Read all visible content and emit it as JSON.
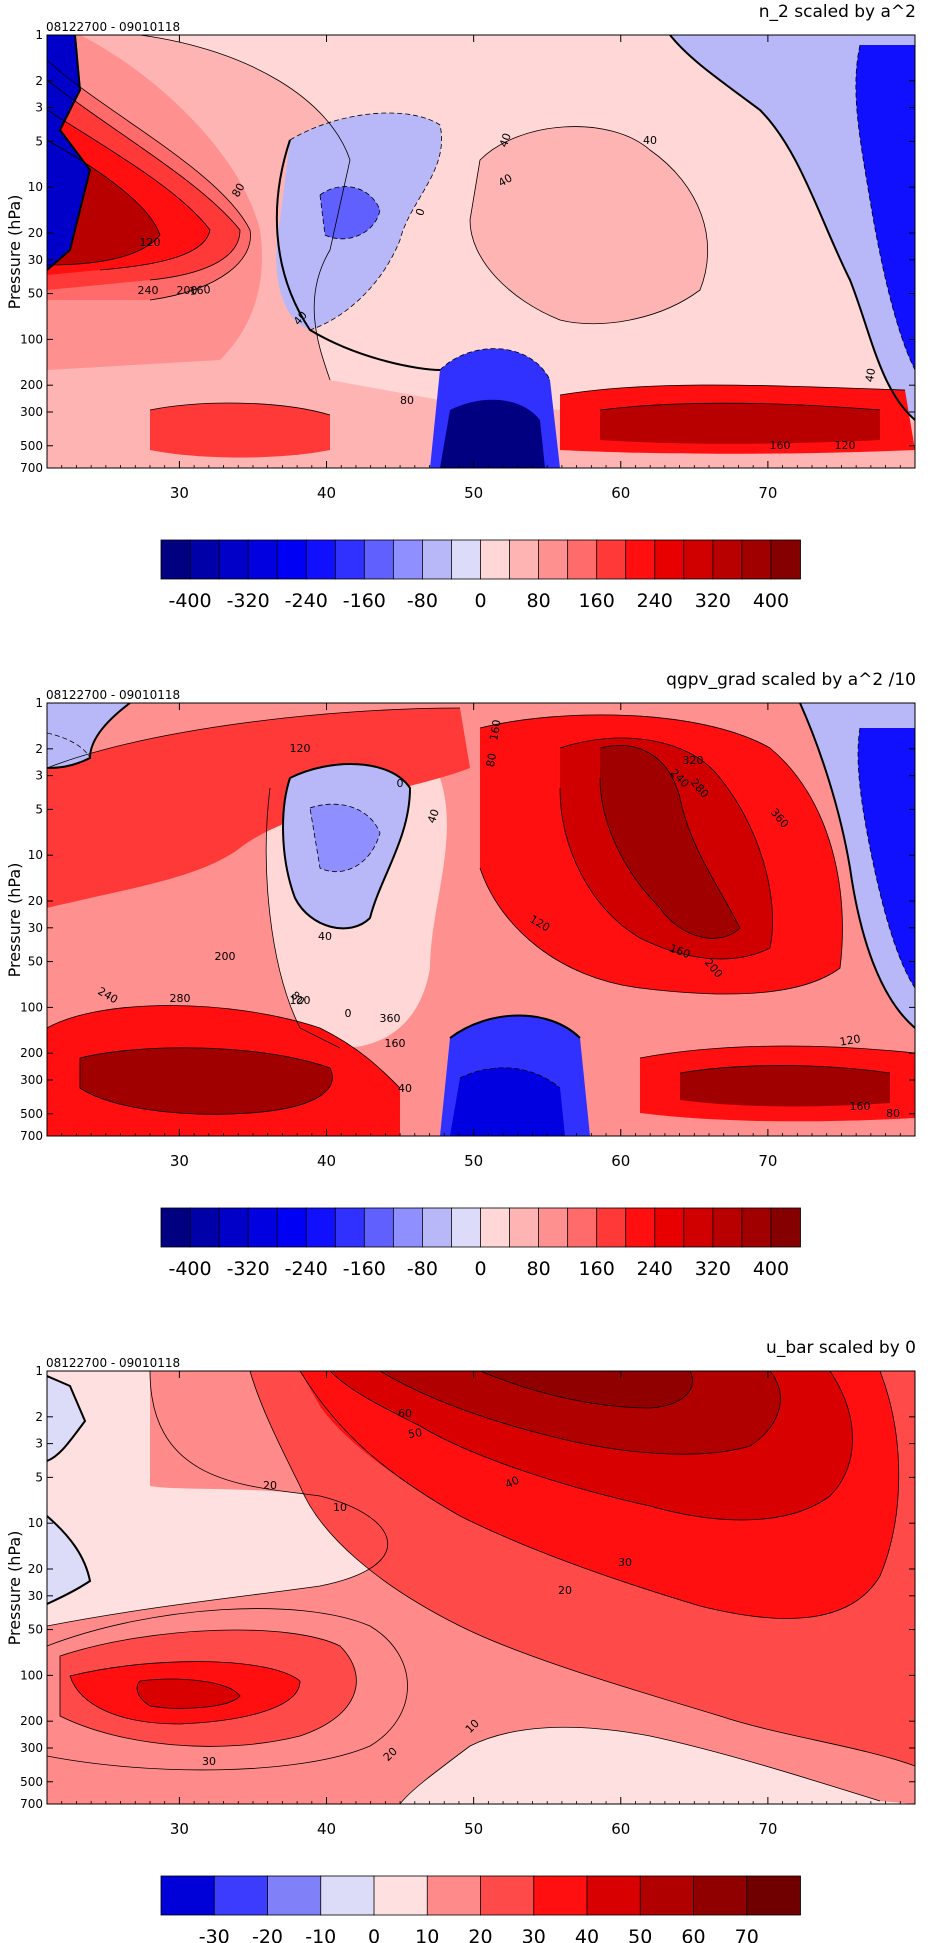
{
  "chart_data": [
    {
      "type": "contour",
      "title": "n_2 scaled by a^2",
      "date_range": "08122700 - 09010118",
      "xlabel": "",
      "ylabel": "Pressure (hPa)",
      "log_y": true,
      "y_reversed": true,
      "xlim": [
        21,
        80
      ],
      "ylim": [
        1,
        700
      ],
      "x_ticks": [
        "30",
        "40",
        "50",
        "60",
        "70"
      ],
      "x_tick_values": [
        30,
        40,
        50,
        60,
        70
      ],
      "y_ticks": [
        "1",
        "2",
        "3",
        "5",
        "10",
        "20",
        "30",
        "50",
        "100",
        "200",
        "300",
        "500",
        "700"
      ],
      "y_tick_values": [
        1,
        2,
        3,
        5,
        10,
        20,
        30,
        50,
        100,
        200,
        300,
        500,
        700
      ],
      "colorbar": {
        "labels": [
          "-400",
          "-320",
          "-240",
          "-160",
          "-80",
          "0",
          "80",
          "160",
          "240",
          "320",
          "400"
        ],
        "label_values": [
          -400,
          -320,
          -240,
          -160,
          -80,
          0,
          80,
          160,
          240,
          320,
          400
        ],
        "min": -440,
        "max": 440,
        "step": 40,
        "colors": [
          "#000080",
          "#0000a8",
          "#0000c8",
          "#0000e0",
          "#0000f5",
          "#1010ff",
          "#3030ff",
          "#6060ff",
          "#8f8fff",
          "#b8b8f8",
          "#dcdcfa",
          "#ffd7d7",
          "#ffb4b4",
          "#ff9090",
          "#ff6a6a",
          "#ff3838",
          "#ff0f0f",
          "#e80000",
          "#d00000",
          "#b80000",
          "#a00000",
          "#850000"
        ]
      },
      "contour_labels": [
        "80",
        "120",
        "160",
        "200",
        "240",
        "0",
        "40",
        "80",
        "40",
        "40",
        "40",
        "160",
        "120",
        "40"
      ]
    },
    {
      "type": "contour",
      "title": "qgpv_grad scaled by a^2 /10",
      "date_range": "08122700 - 09010118",
      "xlabel": "",
      "ylabel": "Pressure (hPa)",
      "log_y": true,
      "y_reversed": true,
      "xlim": [
        21,
        80
      ],
      "ylim": [
        1,
        700
      ],
      "x_ticks": [
        "30",
        "40",
        "50",
        "60",
        "70"
      ],
      "x_tick_values": [
        30,
        40,
        50,
        60,
        70
      ],
      "y_ticks": [
        "1",
        "2",
        "3",
        "5",
        "10",
        "20",
        "30",
        "50",
        "100",
        "200",
        "300",
        "500",
        "700"
      ],
      "y_tick_values": [
        1,
        2,
        3,
        5,
        10,
        20,
        30,
        50,
        100,
        200,
        300,
        500,
        700
      ],
      "colorbar": {
        "labels": [
          "-400",
          "-320",
          "-240",
          "-160",
          "-80",
          "0",
          "80",
          "160",
          "240",
          "320",
          "400"
        ],
        "label_values": [
          -400,
          -320,
          -240,
          -160,
          -80,
          0,
          80,
          160,
          240,
          320,
          400
        ],
        "min": -440,
        "max": 440,
        "step": 40,
        "colors": [
          "#000080",
          "#0000a8",
          "#0000c8",
          "#0000e0",
          "#0000f5",
          "#1010ff",
          "#3030ff",
          "#6060ff",
          "#8f8fff",
          "#b8b8f8",
          "#dcdcfa",
          "#ffd7d7",
          "#ffb4b4",
          "#ff9090",
          "#ff6a6a",
          "#ff3838",
          "#ff0f0f",
          "#e80000",
          "#d00000",
          "#b80000",
          "#a00000",
          "#850000"
        ]
      },
      "contour_labels": [
        "120",
        "0",
        "40",
        "80",
        "160",
        "320",
        "240",
        "280",
        "360",
        "120",
        "160",
        "200",
        "40",
        "80",
        "0",
        "200",
        "240",
        "280",
        "120",
        "360",
        "160",
        "120",
        "160",
        "80",
        "40"
      ]
    },
    {
      "type": "contour",
      "title": "u_bar scaled by 0",
      "date_range": "08122700 - 09010118",
      "xlabel": "",
      "ylabel": "Pressure (hPa)",
      "log_y": true,
      "y_reversed": true,
      "xlim": [
        21,
        80
      ],
      "ylim": [
        1,
        700
      ],
      "x_ticks": [
        "30",
        "40",
        "50",
        "60",
        "70"
      ],
      "x_tick_values": [
        30,
        40,
        50,
        60,
        70
      ],
      "y_ticks": [
        "1",
        "2",
        "3",
        "5",
        "10",
        "20",
        "30",
        "50",
        "100",
        "200",
        "300",
        "500",
        "700"
      ],
      "y_tick_values": [
        1,
        2,
        3,
        5,
        10,
        20,
        30,
        50,
        100,
        200,
        300,
        500,
        700
      ],
      "colorbar": {
        "labels": [
          "-30",
          "-20",
          "-10",
          "0",
          "10",
          "20",
          "30",
          "40",
          "50",
          "60",
          "70"
        ],
        "label_values": [
          -30,
          -20,
          -10,
          0,
          10,
          20,
          30,
          40,
          50,
          60,
          70
        ],
        "min": -40,
        "max": 80,
        "step": 10,
        "colors": [
          "#0000d8",
          "#3c3cff",
          "#8080f8",
          "#dcdcf8",
          "#ffe0e0",
          "#ff8a8a",
          "#ff4a4a",
          "#ff0f0f",
          "#d80000",
          "#b00000",
          "#900000",
          "#700000"
        ]
      },
      "contour_labels": [
        "60",
        "50",
        "20",
        "40",
        "10",
        "30",
        "20",
        "30",
        "20",
        "10"
      ]
    }
  ]
}
